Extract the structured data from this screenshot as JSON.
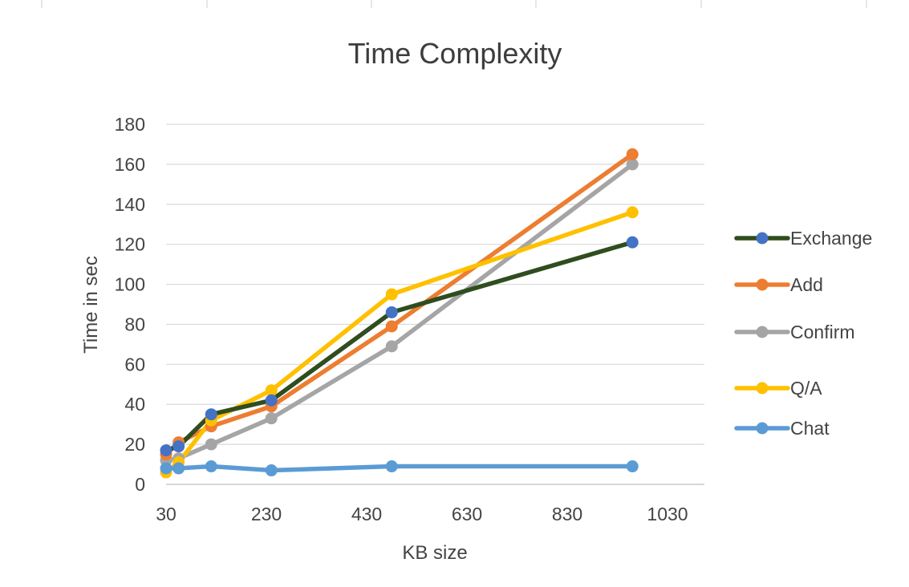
{
  "chart_data": {
    "type": "line",
    "title": "Time Complexity",
    "xlabel": "KB size",
    "ylabel": "Time in sec",
    "xlim": [
      30,
      1030
    ],
    "ylim": [
      0,
      180
    ],
    "xticks": [
      30,
      230,
      430,
      630,
      830,
      1030
    ],
    "yticks": [
      0,
      20,
      40,
      60,
      80,
      100,
      120,
      140,
      160,
      180
    ],
    "x_tick_labels": [
      "30",
      "230",
      "430",
      "630",
      "830",
      "1030"
    ],
    "y_tick_labels": [
      "0",
      "20",
      "40",
      "60",
      "80",
      "100",
      "120",
      "140",
      "160",
      "180"
    ],
    "grid": true,
    "legend_position": "right",
    "x": [
      30,
      55,
      120,
      240,
      480,
      960
    ],
    "series": [
      {
        "name": "Exchange",
        "color": "#2f4d1e",
        "marker_color": "#4472c4",
        "values": [
          17,
          19,
          35,
          42,
          86,
          121
        ]
      },
      {
        "name": "Add",
        "color": "#ed7d31",
        "marker_color": "#ed7d31",
        "values": [
          15,
          21,
          29,
          39,
          79,
          165
        ]
      },
      {
        "name": "Confirm",
        "color": "#a5a5a5",
        "marker_color": "#a5a5a5",
        "values": [
          12,
          13,
          20,
          33,
          69,
          160
        ]
      },
      {
        "name": "Q/A",
        "color": "#ffc000",
        "marker_color": "#ffc000",
        "values": [
          6,
          11,
          32,
          47,
          95,
          136
        ]
      },
      {
        "name": "Chat",
        "color": "#5b9bd5",
        "marker_color": "#5b9bd5",
        "values": [
          8,
          8,
          9,
          7,
          9,
          9
        ]
      }
    ]
  }
}
